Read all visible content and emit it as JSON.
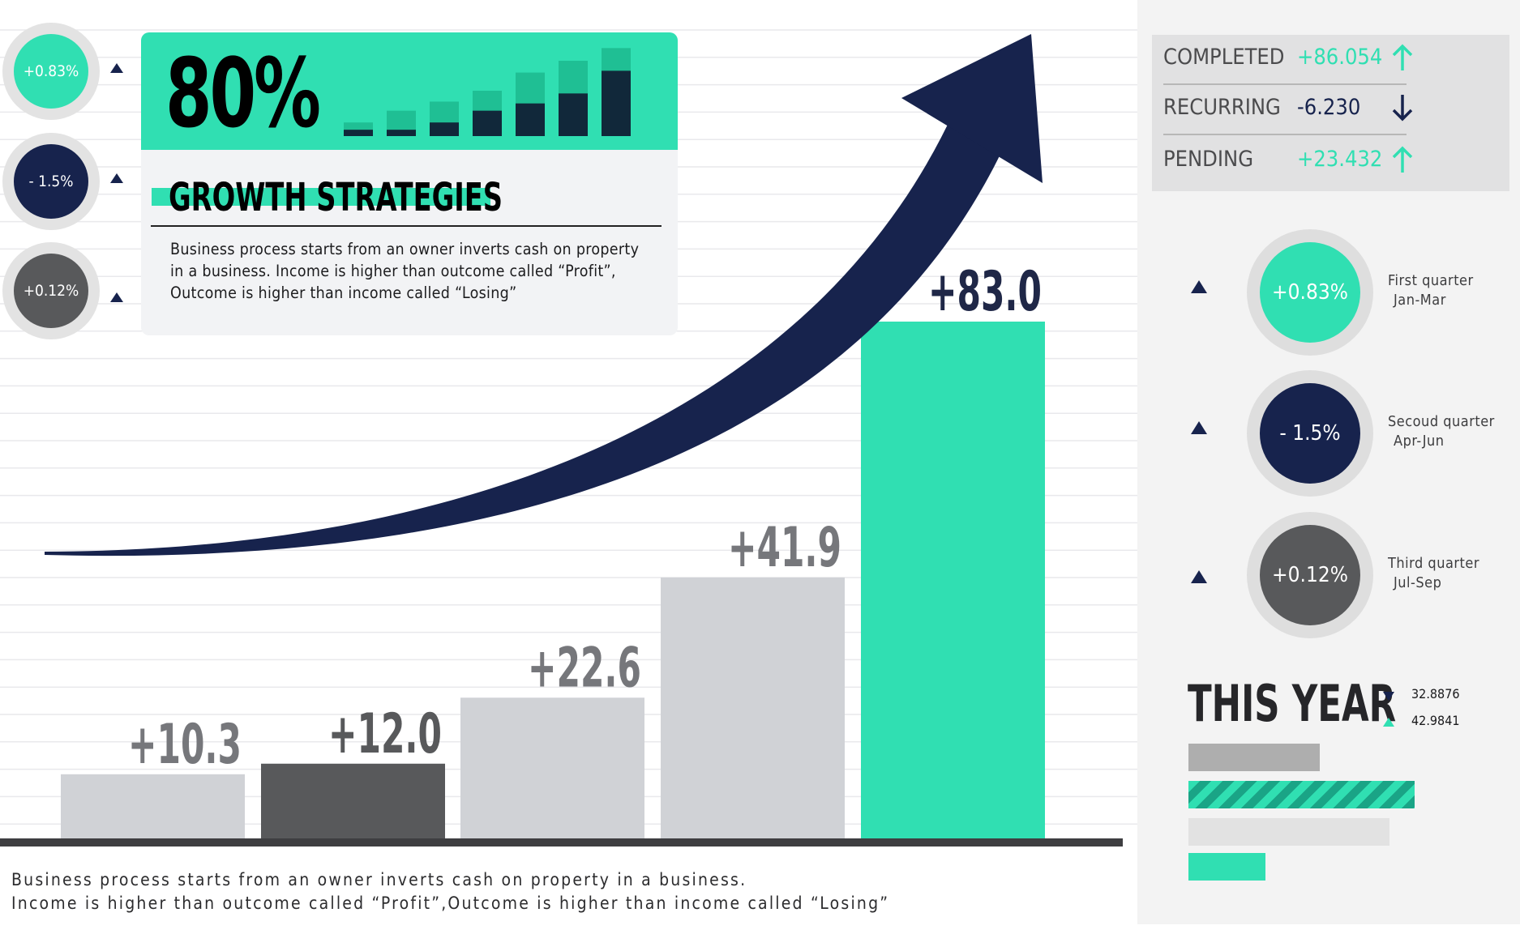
{
  "chart_data": {
    "type": "bar",
    "categories": [
      "",
      "",
      "",
      "",
      ""
    ],
    "values": [
      10.3,
      12.0,
      22.6,
      41.9,
      83.0
    ],
    "data_labels": [
      "+10.3",
      "+12.0",
      "+22.6",
      "+41.9",
      "+83.0"
    ],
    "bar_colors": [
      "#d0d2d6",
      "#58595b",
      "#d0d2d6",
      "#d0d2d6",
      "#30dfb2"
    ],
    "label_colors": [
      "#76777b",
      "#58595b",
      "#76777b",
      "#76777b",
      "#1f2747"
    ],
    "title": "",
    "xlabel": "",
    "ylabel": "",
    "ylim": [
      0,
      83
    ],
    "grid": true,
    "trend_arrow_color": "#17234d"
  },
  "headline": {
    "percent": "80%",
    "title": "GROWTH STRATEGIES",
    "description": "Business process starts from an owner inverts cash on property in a business. Income is higher than outcome called “Profit”, Outcome is higher than income called “Losing”"
  },
  "mini_bars": [
    {
      "total": 0.15,
      "dark": 0.07
    },
    {
      "total": 0.28,
      "dark": 0.07
    },
    {
      "total": 0.38,
      "dark": 0.15
    },
    {
      "total": 0.5,
      "dark": 0.28
    },
    {
      "total": 0.7,
      "dark": 0.36
    },
    {
      "total": 0.83,
      "dark": 0.47
    },
    {
      "total": 0.97,
      "dark": 0.72
    }
  ],
  "left_circles": [
    {
      "label": "+0.83%",
      "color": "#30dfb2"
    },
    {
      "label": "- 1.5%",
      "color": "#17234d"
    },
    {
      "label": "+0.12%",
      "color": "#58595b"
    }
  ],
  "stats": [
    {
      "label": "COMPLETED",
      "value": "+86.054",
      "color": "#30dfb2",
      "direction": "up"
    },
    {
      "label": "RECURRING",
      "value": "-6.230",
      "color": "#17234d",
      "direction": "down"
    },
    {
      "label": "PENDING",
      "value": "+23.432",
      "color": "#30dfb2",
      "direction": "up"
    }
  ],
  "quarters": [
    {
      "value": "+0.83%",
      "name": "First quarter",
      "months": "Jan-Mar",
      "color": "#30dfb2"
    },
    {
      "value": "- 1.5%",
      "name": "Secoud quarter",
      "months": "Apr-Jun",
      "color": "#17234d"
    },
    {
      "value": "+0.12%",
      "name": "Third quarter",
      "months": "Jul-Sep",
      "color": "#58595b"
    }
  ],
  "this_year": {
    "title": "THIS YEAR",
    "down_value": "32.8876",
    "up_value": "42.9841",
    "bars": [
      {
        "fraction": 0.58,
        "color": "#aeaeae",
        "striped": false
      },
      {
        "fraction": 1.0,
        "color": "#30dfb2",
        "striped": true
      },
      {
        "fraction": 0.89,
        "color": "#e2e2e2",
        "striped": false
      },
      {
        "fraction": 0.34,
        "color": "#30dfb2",
        "striped": false
      }
    ]
  },
  "footer": {
    "line1": "Business process starts from an owner inverts cash on property in a business.",
    "line2": "Income is higher than outcome called “Profit”,Outcome is higher than income called “Losing”"
  }
}
